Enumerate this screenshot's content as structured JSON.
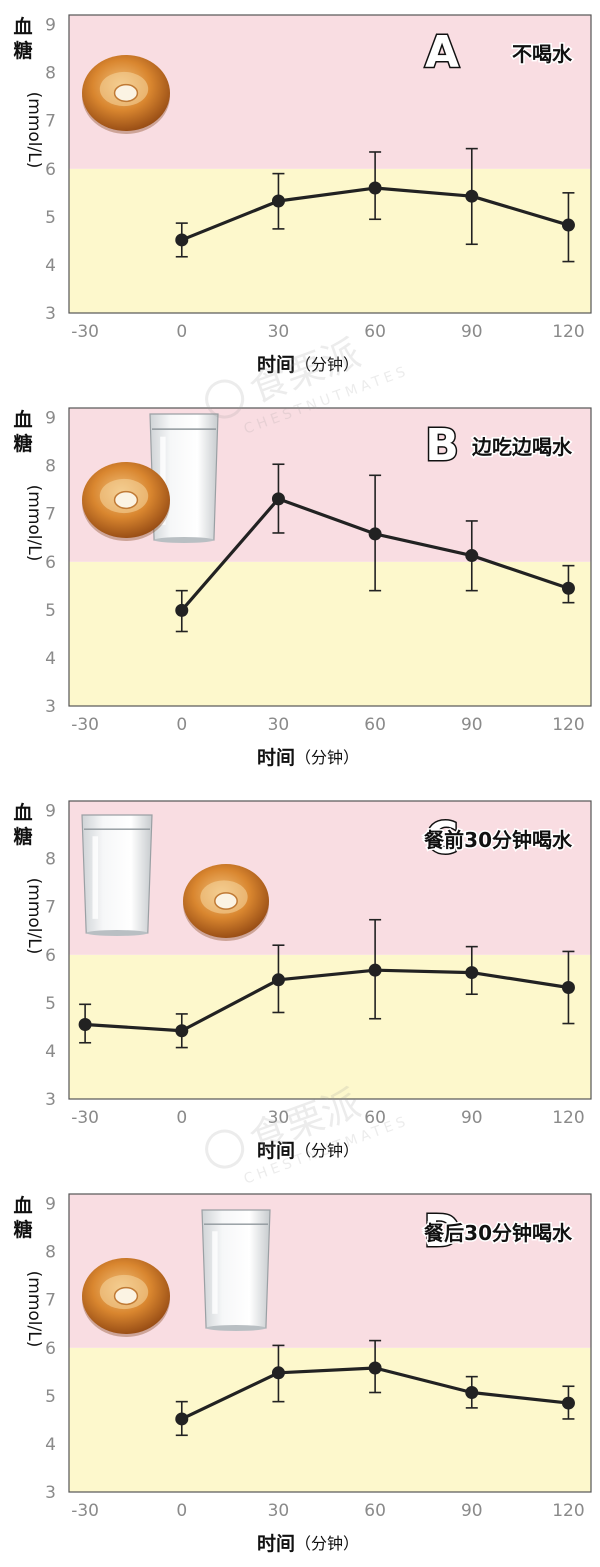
{
  "chart_data": [
    {
      "type": "line",
      "panel_letter": "A",
      "title": "不喝水",
      "ylabel": "血糖 (mmol/L)",
      "ylabel_main": "血糖",
      "ylabel_unit": "(mmol/L)",
      "xlabel_main": "时间",
      "xlabel_unit": "（分钟）",
      "x_ticks": [
        -30,
        0,
        30,
        60,
        90,
        120
      ],
      "y_ticks": [
        3,
        4,
        5,
        6,
        7,
        8,
        9
      ],
      "xlim": [
        -35,
        127
      ],
      "ylim": [
        3,
        9.2
      ],
      "bands": [
        {
          "from": 3,
          "to": 6,
          "color": "#fdf8cc"
        },
        {
          "from": 6,
          "to": 9.2,
          "color": "#f9dde2"
        }
      ],
      "x": [
        0,
        30,
        60,
        90,
        120
      ],
      "y": [
        4.52,
        5.33,
        5.6,
        5.43,
        4.83
      ],
      "err_low": [
        4.17,
        4.75,
        4.95,
        4.43,
        4.07
      ],
      "err_high": [
        4.87,
        5.9,
        6.35,
        6.42,
        5.5
      ],
      "images": [
        "bagel-icon"
      ]
    },
    {
      "type": "line",
      "panel_letter": "B",
      "title": "边吃边喝水",
      "ylabel": "血糖 (mmol/L)",
      "ylabel_main": "血糖",
      "ylabel_unit": "(mmol/L)",
      "xlabel_main": "时间",
      "xlabel_unit": "（分钟）",
      "x_ticks": [
        -30,
        0,
        30,
        60,
        90,
        120
      ],
      "y_ticks": [
        3,
        4,
        5,
        6,
        7,
        8,
        9
      ],
      "xlim": [
        -35,
        127
      ],
      "ylim": [
        3,
        9.2
      ],
      "bands": [
        {
          "from": 3,
          "to": 6,
          "color": "#fdf8cc"
        },
        {
          "from": 6,
          "to": 9.2,
          "color": "#f9dde2"
        }
      ],
      "x": [
        0,
        30,
        60,
        90,
        120
      ],
      "y": [
        4.99,
        7.31,
        6.58,
        6.13,
        5.45
      ],
      "err_low": [
        4.55,
        6.6,
        5.4,
        5.4,
        5.15
      ],
      "err_high": [
        5.4,
        8.03,
        7.8,
        6.85,
        5.92
      ],
      "images": [
        "bagel-icon",
        "water-glass-icon"
      ]
    },
    {
      "type": "line",
      "panel_letter": "C",
      "title": "餐前30分钟喝水",
      "ylabel": "血糖 (mmol/L)",
      "ylabel_main": "血糖",
      "ylabel_unit": "(mmol/L)",
      "xlabel_main": "时间",
      "xlabel_unit": "（分钟）",
      "x_ticks": [
        -30,
        0,
        30,
        60,
        90,
        120
      ],
      "y_ticks": [
        3,
        4,
        5,
        6,
        7,
        8,
        9
      ],
      "xlim": [
        -35,
        127
      ],
      "ylim": [
        3,
        9.2
      ],
      "bands": [
        {
          "from": 3,
          "to": 6,
          "color": "#fdf8cc"
        },
        {
          "from": 6,
          "to": 9.2,
          "color": "#f9dde2"
        }
      ],
      "x": [
        -30,
        0,
        30,
        60,
        90,
        120
      ],
      "y": [
        4.55,
        4.42,
        5.48,
        5.68,
        5.63,
        5.32
      ],
      "err_low": [
        4.17,
        4.07,
        4.8,
        4.67,
        5.18,
        4.57
      ],
      "err_high": [
        4.97,
        4.77,
        6.2,
        6.73,
        6.17,
        6.07
      ],
      "images": [
        "water-glass-icon",
        "bagel-icon"
      ]
    },
    {
      "type": "line",
      "panel_letter": "D",
      "title": "餐后30分钟喝水",
      "ylabel": "血糖 (mmol/L)",
      "ylabel_main": "血糖",
      "ylabel_unit": "(mmol/L)",
      "xlabel_main": "时间",
      "xlabel_unit": "（分钟）",
      "x_ticks": [
        -30,
        0,
        30,
        60,
        90,
        120
      ],
      "y_ticks": [
        3,
        4,
        5,
        6,
        7,
        8,
        9
      ],
      "xlim": [
        -35,
        127
      ],
      "ylim": [
        3,
        9.2
      ],
      "bands": [
        {
          "from": 3,
          "to": 6,
          "color": "#fdf8cc"
        },
        {
          "from": 6,
          "to": 9.2,
          "color": "#f9dde2"
        }
      ],
      "x": [
        0,
        30,
        60,
        90,
        120
      ],
      "y": [
        4.52,
        5.48,
        5.58,
        5.07,
        4.85
      ],
      "err_low": [
        4.18,
        4.88,
        5.07,
        4.75,
        4.52
      ],
      "err_high": [
        4.88,
        6.05,
        6.15,
        5.4,
        5.2
      ],
      "images": [
        "bagel-icon",
        "water-glass-icon"
      ]
    }
  ],
  "watermark": {
    "cn": "食栗派",
    "en": "CHESTNUTMATES"
  },
  "style": {
    "line_color": "#222222",
    "tick_color": "#8a8a8a",
    "pink": "#f9dde2",
    "yellow": "#fdf8cc"
  }
}
